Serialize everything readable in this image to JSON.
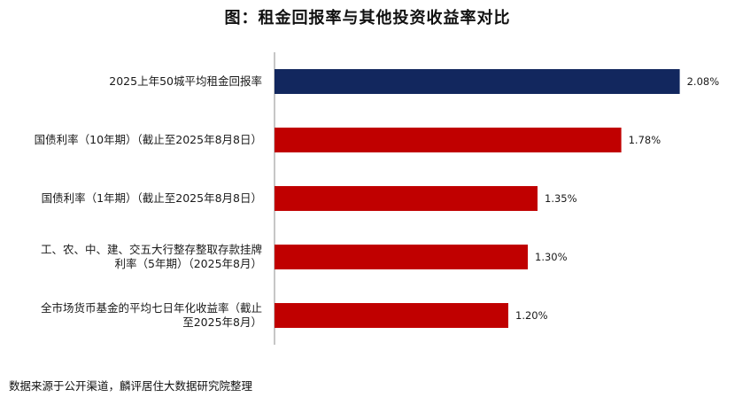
{
  "title": "图：租金回报率与其他投资收益率对比",
  "source": "数据来源于公开渠道，麟评居住大数据研究院整理",
  "colors": {
    "highlight": "#12275e",
    "default": "#c00000",
    "axis": "#8c8c8c"
  },
  "chart_data": {
    "type": "bar",
    "orientation": "horizontal",
    "title": "图：租金回报率与其他投资收益率对比",
    "categories": [
      [
        "2025上年50城平均租金回报率"
      ],
      [
        "国债利率（10年期）（截止至2025年8月8日）"
      ],
      [
        "国债利率（1年期）（截止至2025年8月8日）"
      ],
      [
        "工、农、中、建、交五大行整存整取存款挂牌",
        "利率（5年期）（2025年8月）"
      ],
      [
        "全市场货币基金的平均七日年化收益率（截止",
        "至2025年8月）"
      ]
    ],
    "values": [
      2.08,
      1.78,
      1.35,
      1.3,
      1.2
    ],
    "value_labels": [
      "2.08%",
      "1.78%",
      "1.35%",
      "1.30%",
      "1.20%"
    ],
    "unit": "%",
    "highlight_index": 0,
    "xlim": [
      0,
      2.2
    ],
    "grid": false,
    "xlabel": "",
    "ylabel": ""
  }
}
